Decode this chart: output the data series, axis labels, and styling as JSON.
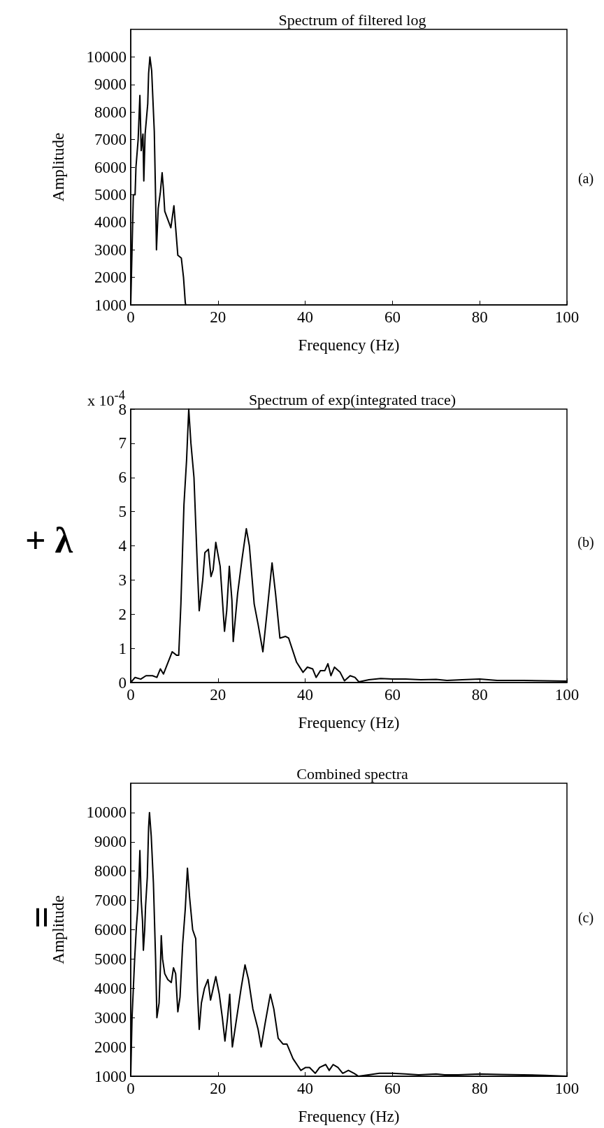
{
  "chart_data": [
    {
      "type": "line",
      "title": "Spectrum of filtered log",
      "xlabel": "Frequency (Hz)",
      "ylabel": "Amplitude",
      "annotations": [
        "(a)"
      ],
      "xlim": [
        0,
        100
      ],
      "xticks": [
        0,
        20,
        40,
        60,
        80,
        100
      ],
      "ylim": [
        1000,
        11000
      ],
      "yticks": [
        1000,
        2000,
        3000,
        4000,
        5000,
        6000,
        7000,
        8000,
        9000,
        10000
      ],
      "grid": false,
      "series": [
        {
          "color": "#000000",
          "x": [
            0,
            0.3,
            0.6,
            1,
            1.2,
            1.7,
            2.1,
            2.4,
            2.8,
            3.0,
            3.3,
            3.9,
            4.1,
            4.4,
            4.8,
            5.4,
            5.7,
            5.9,
            6.3,
            6.8,
            7.2,
            7.5,
            7.8,
            8.5,
            9.2,
            9.9,
            10.3,
            10.8,
            11.6,
            12.1,
            12.5,
            12.6
          ],
          "values": [
            1000,
            3000,
            5000,
            5000,
            6000,
            7000,
            8600,
            6600,
            7200,
            5500,
            7200,
            8300,
            9400,
            10000,
            9500,
            7300,
            4900,
            3000,
            4500,
            5100,
            5800,
            5200,
            4400,
            4100,
            3800,
            4600,
            3800,
            2800,
            2700,
            2000,
            1100,
            1000
          ]
        }
      ]
    },
    {
      "type": "line",
      "title": "Spectrum of exp(integrated trace)",
      "xlabel": "Frequency (Hz)",
      "annotations": [
        "x 10$^{-4}$",
        "+ λ",
        "(b)"
      ],
      "xlim": [
        0,
        100
      ],
      "xticks": [
        0,
        20,
        40,
        60,
        80,
        100
      ],
      "ylim": [
        0,
        8
      ],
      "yticks": [
        0,
        1,
        2,
        3,
        4,
        5,
        6,
        7,
        8
      ],
      "grid": false,
      "series": [
        {
          "color": "#000000",
          "x": [
            0,
            1,
            2.3,
            3.5,
            5,
            6,
            6.8,
            7.5,
            9.5,
            10.5,
            11,
            11.5,
            12.2,
            12.8,
            13.3,
            13.8,
            14.5,
            15.3,
            15.7,
            16.5,
            17,
            17.8,
            18.4,
            18.9,
            19.5,
            20.5,
            21.5,
            22,
            22.6,
            23.2,
            23.5,
            24.5,
            25.5,
            26.5,
            27.2,
            28.3,
            29.2,
            30.3,
            31.2,
            32.4,
            33.2,
            34.2,
            35.5,
            36.2,
            38,
            39.5,
            40.5,
            41.7,
            42.5,
            43.5,
            44.5,
            45.2,
            45.9,
            46.7,
            48,
            49,
            50.3,
            51.4,
            52.3,
            54.6,
            57.3,
            60,
            63,
            66.5,
            70,
            72.5,
            76,
            80,
            84,
            90,
            95,
            100
          ],
          "values": [
            0,
            0.15,
            0.1,
            0.2,
            0.2,
            0.15,
            0.4,
            0.25,
            0.9,
            0.8,
            0.8,
            2.3,
            5.2,
            6.5,
            8,
            7,
            6,
            3.3,
            2.1,
            3,
            3.8,
            3.9,
            3.1,
            3.3,
            4.1,
            3.4,
            1.5,
            2.1,
            3.4,
            2.4,
            1.2,
            2.6,
            3.6,
            4.5,
            4,
            2.3,
            1.7,
            0.9,
            2,
            3.5,
            2.6,
            1.3,
            1.35,
            1.3,
            0.6,
            0.3,
            0.45,
            0.4,
            0.15,
            0.35,
            0.35,
            0.55,
            0.2,
            0.45,
            0.3,
            0.05,
            0.2,
            0.15,
            0.02,
            0.08,
            0.12,
            0.1,
            0.1,
            0.08,
            0.09,
            0.06,
            0.08,
            0.1,
            0.06,
            0.06,
            0.05,
            0.04
          ]
        }
      ]
    },
    {
      "type": "line",
      "title": "Combined spectra",
      "xlabel": "Frequency (Hz)",
      "ylabel": "Amplitude",
      "annotations": [
        "=",
        "(c)"
      ],
      "xlim": [
        0,
        100
      ],
      "xticks": [
        0,
        20,
        40,
        60,
        80,
        100
      ],
      "ylim": [
        1000,
        11000
      ],
      "yticks": [
        1000,
        2000,
        3000,
        4000,
        5000,
        6000,
        7000,
        8000,
        9000,
        10000
      ],
      "grid": false,
      "series": [
        {
          "color": "#000000",
          "x": [
            0,
            0.3,
            0.6,
            0.9,
            1.3,
            1.6,
            1.9,
            2.1,
            2.4,
            2.7,
            2.9,
            3.2,
            3.4,
            3.8,
            4.1,
            4.3,
            4.7,
            5.2,
            5.7,
            6.0,
            6.5,
            6.8,
            7.0,
            7.3,
            7.8,
            8.5,
            9.3,
            9.8,
            10.3,
            10.8,
            11.3,
            11.9,
            12.5,
            13.0,
            13.5,
            14.2,
            14.9,
            15.3,
            15.7,
            16.2,
            16.9,
            17.7,
            18.3,
            18.9,
            19.5,
            20.3,
            21.0,
            21.6,
            22.2,
            22.7,
            23.0,
            23.3,
            24.3,
            25.3,
            26.2,
            27.0,
            28.0,
            29.2,
            29.9,
            30.8,
            32.0,
            32.8,
            33.8,
            34.9,
            35.8,
            37.2,
            39.0,
            40.1,
            41,
            42.3,
            43.3,
            44.7,
            45.5,
            46.4,
            47.5,
            48.6,
            49.9,
            51.2,
            52.2,
            54.5,
            57,
            60,
            63,
            66,
            70,
            72,
            75,
            80,
            85,
            90,
            95,
            100
          ],
          "values": [
            1000,
            3000,
            4000,
            5000,
            6100,
            6700,
            7800,
            8700,
            7000,
            6300,
            5300,
            6000,
            6800,
            7800,
            9500,
            10000,
            9200,
            7600,
            5000,
            3000,
            3500,
            4700,
            5800,
            5000,
            4500,
            4300,
            4200,
            4700,
            4500,
            3200,
            3700,
            5500,
            6700,
            8100,
            7100,
            6000,
            5700,
            3900,
            2600,
            3500,
            4000,
            4300,
            3600,
            4000,
            4400,
            3800,
            3000,
            2200,
            3000,
            3800,
            2800,
            2000,
            3000,
            4000,
            4800,
            4300,
            3300,
            2600,
            2000,
            2800,
            3800,
            3300,
            2300,
            2100,
            2100,
            1600,
            1200,
            1300,
            1300,
            1100,
            1300,
            1400,
            1200,
            1400,
            1300,
            1100,
            1200,
            1100,
            1000,
            1050,
            1100,
            1100,
            1080,
            1050,
            1080,
            1050,
            1050,
            1080,
            1060,
            1050,
            1030,
            1000
          ]
        }
      ]
    }
  ]
}
